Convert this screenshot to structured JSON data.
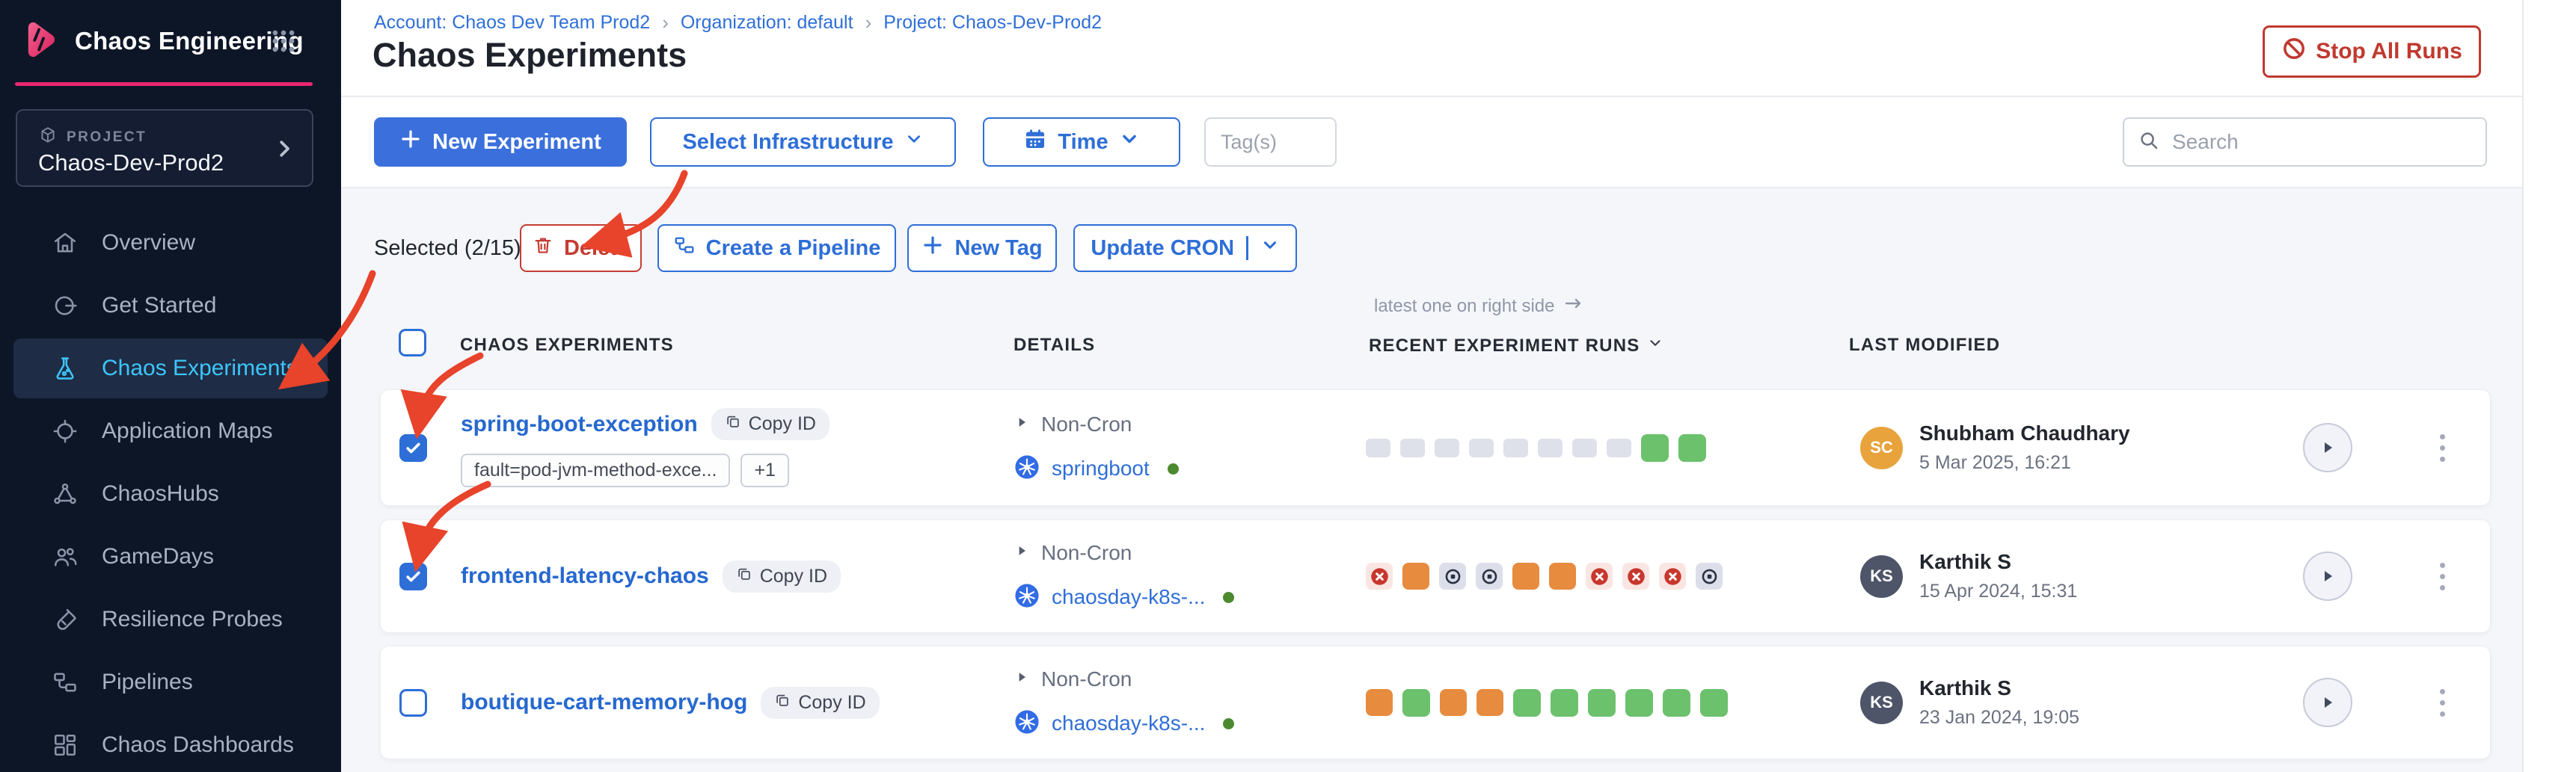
{
  "colors": {
    "accent_pink": "#E9276F",
    "primary_blue": "#2E6ED7",
    "active_cyan": "#3DC6F9",
    "danger_red": "#C43C31",
    "success_green": "#6CC16C",
    "warning_orange": "#E78B3F",
    "sidebar_bg": "#0D1626"
  },
  "sidebar": {
    "app_title": "Chaos Engineering",
    "project_label": "PROJECT",
    "project_name": "Chaos-Dev-Prod2",
    "items": [
      {
        "id": "overview",
        "icon": "home",
        "label": "Overview",
        "active": false
      },
      {
        "id": "get-started",
        "icon": "get-started",
        "label": "Get Started",
        "active": false
      },
      {
        "id": "chaos-experiments",
        "icon": "flask",
        "label": "Chaos Experiments",
        "active": true
      },
      {
        "id": "application-maps",
        "icon": "app-maps",
        "label": "Application Maps",
        "active": false
      },
      {
        "id": "chaoshubs",
        "icon": "hubs",
        "label": "ChaosHubs",
        "active": false
      },
      {
        "id": "gamedays",
        "icon": "people",
        "label": "GameDays",
        "active": false
      },
      {
        "id": "resilience-probes",
        "icon": "probe",
        "label": "Resilience Probes",
        "active": false
      },
      {
        "id": "pipelines",
        "icon": "pipeline",
        "label": "Pipelines",
        "active": false
      },
      {
        "id": "chaos-dashboards",
        "icon": "dashboard",
        "label": "Chaos Dashboards",
        "active": false
      }
    ]
  },
  "header": {
    "breadcrumbs": [
      "Account: Chaos Dev Team Prod2",
      "Organization: default",
      "Project: Chaos-Dev-Prod2"
    ],
    "separator": "›",
    "title": "Chaos Experiments",
    "stop_all_runs_label": "Stop All Runs"
  },
  "toolbar": {
    "new_experiment_label": "New Experiment",
    "select_infrastructure_label": "Select Infrastructure",
    "time_label": "Time",
    "tags_placeholder": "Tag(s)",
    "search_placeholder": "Search"
  },
  "selection": {
    "selected_label": "Selected (2/15)",
    "delete_label": "Delete",
    "create_pipeline_label": "Create a Pipeline",
    "new_tag_label": "New Tag",
    "update_cron_label": "Update CRON"
  },
  "table": {
    "col_experiments": "CHAOS EXPERIMENTS",
    "col_details": "DETAILS",
    "runs_note": "latest one on right side",
    "col_recent_runs": "RECENT EXPERIMENT RUNS",
    "col_last_modified": "LAST MODIFIED",
    "copy_id_label": "Copy ID"
  },
  "rows": [
    {
      "name": "spring-boot-exception",
      "checked": true,
      "tags": [
        "fault=pod-jvm-method-exce...",
        "+1"
      ],
      "schedule": "Non-Cron",
      "infra": "springboot",
      "runs": [
        "na",
        "na",
        "na",
        "na",
        "na",
        "na",
        "na",
        "na",
        "pass",
        "pass"
      ],
      "initials": "SC",
      "avatar_color": "#E8A33D",
      "modified_by": "Shubham Chaudhary",
      "modified_at": "5 Mar 2025, 16:21"
    },
    {
      "name": "frontend-latency-chaos",
      "checked": true,
      "tags": [],
      "schedule": "Non-Cron",
      "infra": "chaosday-k8s-...",
      "runs": [
        "fail",
        "warn",
        "stop",
        "stop",
        "warn",
        "warn",
        "fail",
        "fail",
        "fail",
        "stop"
      ],
      "initials": "KS",
      "avatar_color": "#4E5568",
      "modified_by": "Karthik S",
      "modified_at": "15 Apr 2024, 15:31"
    },
    {
      "name": "boutique-cart-memory-hog",
      "checked": false,
      "tags": [],
      "schedule": "Non-Cron",
      "infra": "chaosday-k8s-...",
      "runs": [
        "warn",
        "pass",
        "warn",
        "warn",
        "pass",
        "pass",
        "pass",
        "pass",
        "pass",
        "pass"
      ],
      "initials": "KS",
      "avatar_color": "#4E5568",
      "modified_by": "Karthik S",
      "modified_at": "23 Jan 2024, 19:05"
    }
  ]
}
